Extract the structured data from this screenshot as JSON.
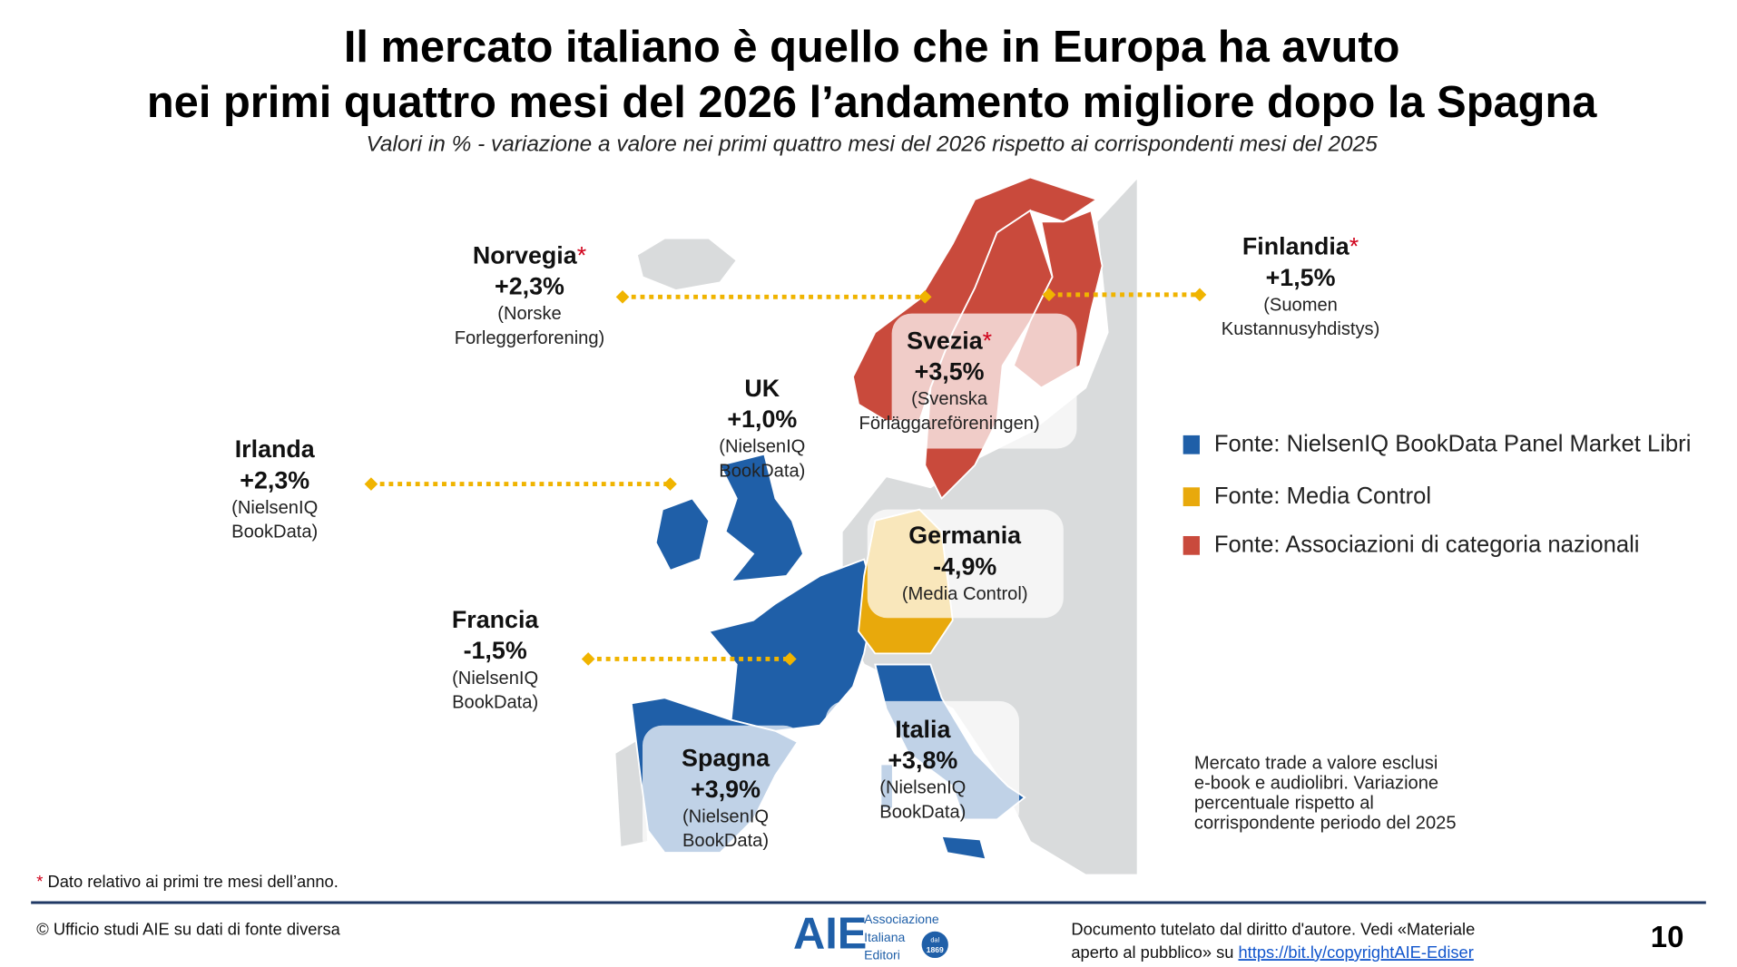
{
  "header": {
    "title_lines": [
      "Il mercato italiano è quello che in Europa ha avuto",
      "nei primi quattro mesi del 2026 l’andamento migliore dopo la Spagna"
    ],
    "subtitle": "Valori in % - variazione a valore nei primi quattro mesi del 2026 rispetto ai corrispondenti mesi del 2025"
  },
  "countries": [
    {
      "name": "Norvegia",
      "mark": "*",
      "change": "+2,3%",
      "source_lines": [
        "(Norske",
        "Forleggerforening)"
      ]
    },
    {
      "name": "Finlandia",
      "mark": "*",
      "change": "+1,5%",
      "source_lines": [
        "(Suomen",
        "Kustannusyhdistys)"
      ]
    },
    {
      "name": "Svezia",
      "mark": "*",
      "change": "+3,5%",
      "source_lines": [
        "(Svenska",
        "Förläggareföreningen)"
      ]
    },
    {
      "name": "UK",
      "change": "+1,0%",
      "source_lines": [
        "(NielsenIQ",
        "BookData)"
      ]
    },
    {
      "name": "Irlanda",
      "change": "+2,3%",
      "source_lines": [
        "(NielsenIQ",
        "BookData)"
      ]
    },
    {
      "name": "Germania",
      "change": "-4,9%",
      "source_lines": [
        "(Media Control)"
      ]
    },
    {
      "name": "Francia",
      "change": "-1,5%",
      "source_lines": [
        "(NielsenIQ",
        "BookData)"
      ]
    },
    {
      "name": "Spagna",
      "change": "+3,9%",
      "source_lines": [
        "(NielsenIQ",
        "BookData)"
      ]
    },
    {
      "name": "Italia",
      "change": "+3,8%",
      "source_lines": [
        "(NielsenIQ",
        "BookData)"
      ]
    }
  ],
  "legend": [
    "Fonte: NielsenIQ BookData Panel Market Libri",
    "Fonte: Media Control",
    "Fonte: Associazioni di categoria nazionali"
  ],
  "note_lines": [
    "Mercato trade a valore esclusi",
    "e-book e audiolibri. Variazione",
    "percentuale rispetto al",
    "corrispondente periodo del 2025"
  ],
  "footnote": {
    "mark": "*",
    "text": " Dato relativo ai primi tre mesi dell’anno."
  },
  "footer": {
    "credit": "© Ufficio studi AIE su dati di fonte diversa",
    "logo": {
      "acronym": "AIE",
      "name_lines": [
        "Associazione",
        "Italiana",
        "Editori"
      ],
      "badge_lines": [
        "dal",
        "1869"
      ]
    },
    "copyright_lines": [
      "Documento tutelato dal diritto d'autore. Vedi «Materiale",
      "aperto al pubblico» su "
    ],
    "link": "https://bit.ly/copyrightAIE-Ediser",
    "page": "10"
  }
}
